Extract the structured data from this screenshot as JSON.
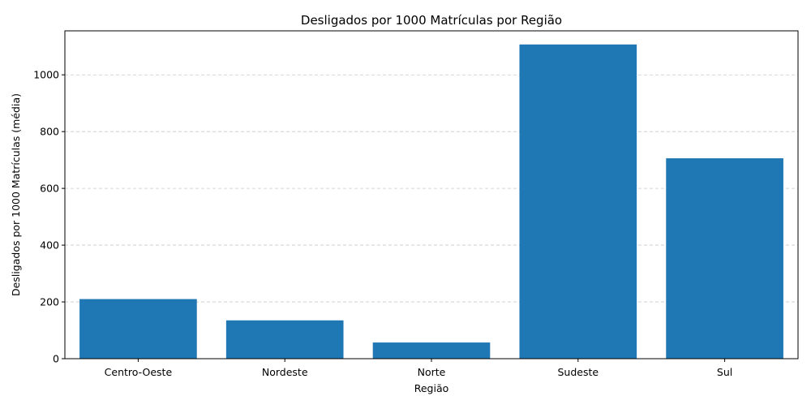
{
  "chart_data": {
    "type": "bar",
    "title": "Desligados por 1000 Matrículas por Região",
    "xlabel": "Região",
    "ylabel": "Desligados por 1000 Matrículas (média)",
    "categories": [
      "Centro-Oeste",
      "Nordeste",
      "Norte",
      "Sudeste",
      "Sul"
    ],
    "values": [
      210,
      135,
      57,
      1107,
      706
    ],
    "ylim": [
      0,
      1155
    ],
    "yticks": [
      0,
      200,
      400,
      600,
      800,
      1000
    ],
    "grid": "y-dashed",
    "bar_color": "#1f77b4",
    "grid_color": "#c8c8c8"
  }
}
